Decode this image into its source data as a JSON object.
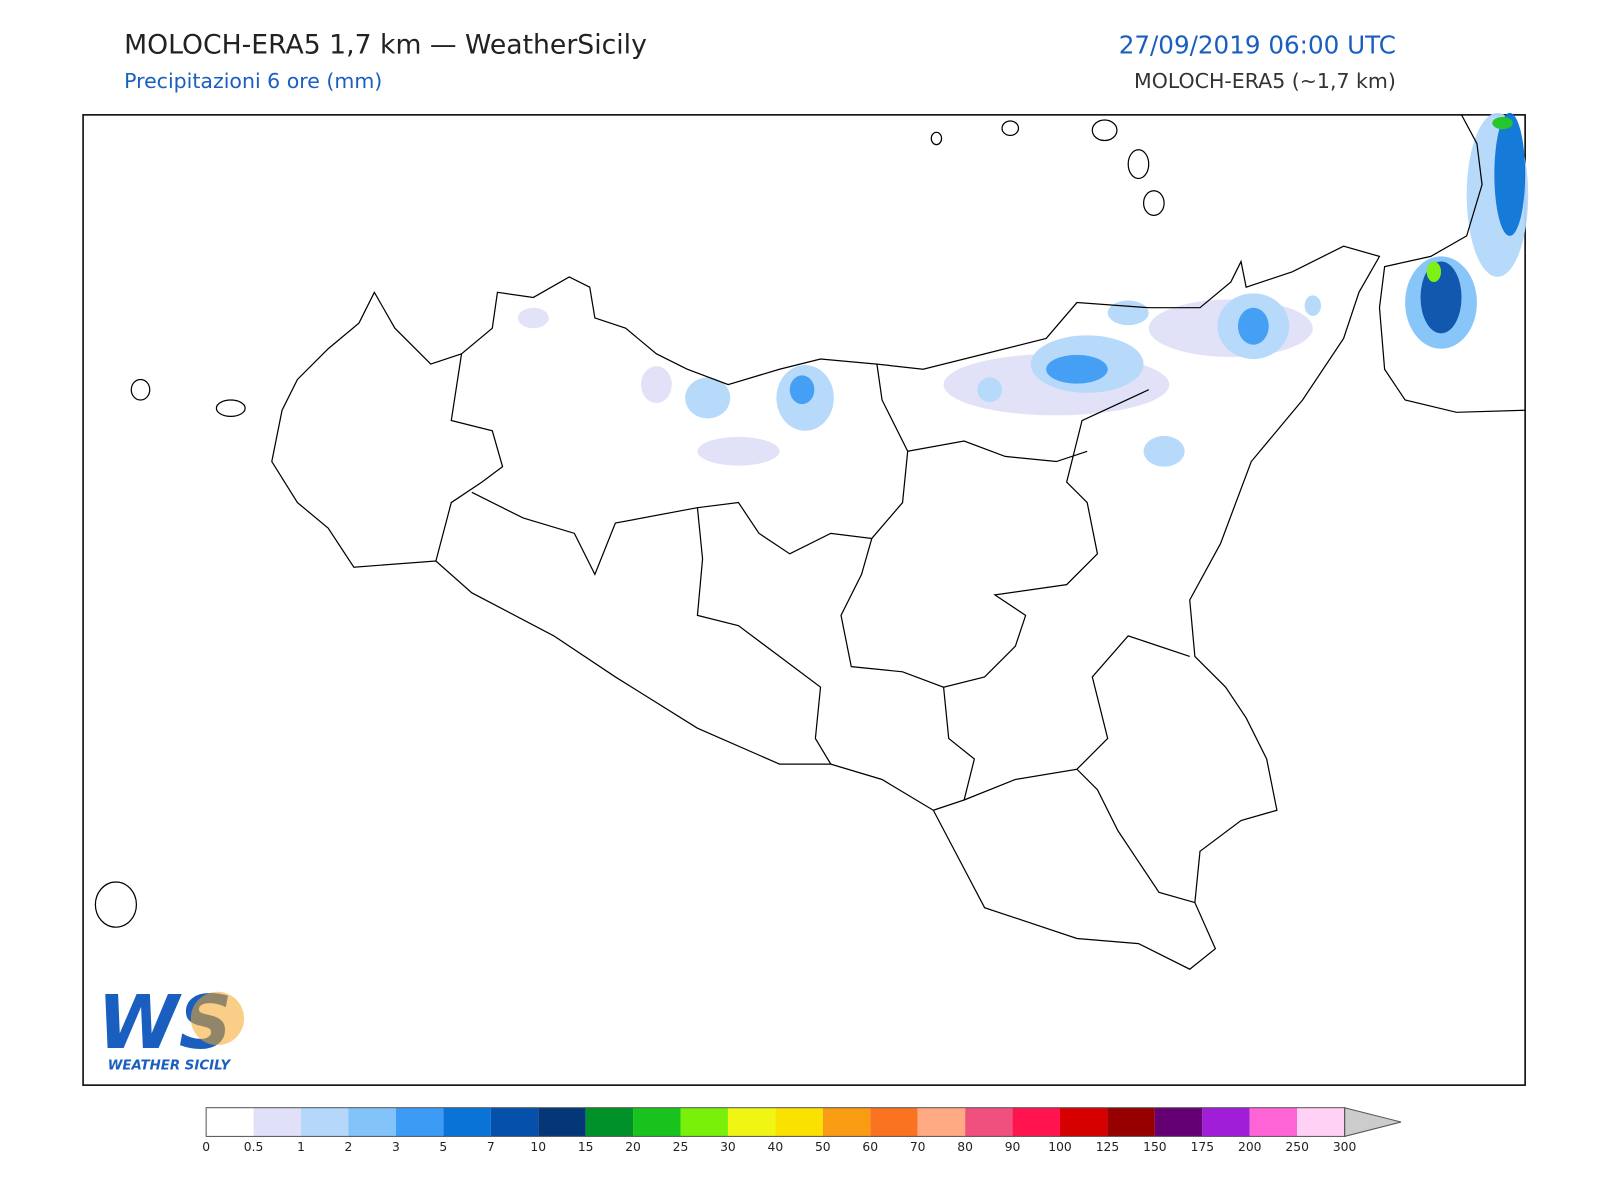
{
  "header": {
    "title": "MOLOCH-ERA5 1,7 km — WeatherSicily",
    "subtitle": "Precipitazioni 6 ore (mm)",
    "datetime": "27/09/2019 06:00 UTC",
    "model": "MOLOCH-ERA5 (~1,7 km)"
  },
  "logo": {
    "mark": "WS",
    "text": "WEATHER SICILY"
  },
  "colorbar": {
    "ticks": [
      0,
      0.5,
      1,
      2,
      3,
      5,
      7,
      10,
      15,
      20,
      25,
      30,
      40,
      50,
      60,
      70,
      80,
      90,
      100,
      125,
      150,
      175,
      200,
      250,
      300
    ],
    "colors": [
      "#ffffff",
      "#e0e0f8",
      "#b4d7fa",
      "#82c3fa",
      "#3c9bf5",
      "#0a73d7",
      "#0550aa",
      "#053778",
      "#009128",
      "#19c31e",
      "#78f00a",
      "#f0f514",
      "#fae100",
      "#fa9b14",
      "#fa7321",
      "#ffaa82",
      "#f0507d",
      "#ff1450",
      "#d70000",
      "#960000",
      "#640073",
      "#a01ed7",
      "#ff64d7",
      "#ffd2f5"
    ],
    "extend_color": "#cccccc"
  }
}
